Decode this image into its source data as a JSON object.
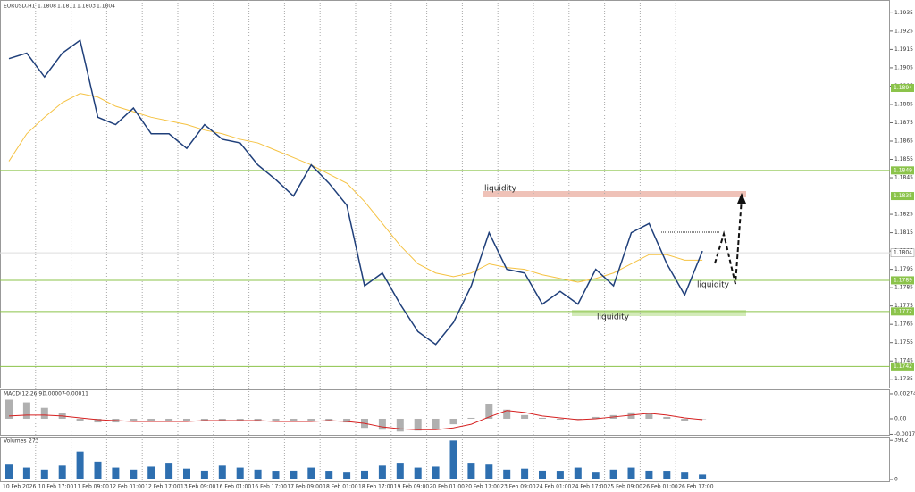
{
  "chart_data": [
    {
      "type": "line",
      "title": "EURUSD,H1",
      "ohlc": [
        1.1808,
        1.1811,
        1.1803,
        1.1804
      ],
      "categories": [
        "10 Feb 2026",
        null,
        "10 Feb 17:00",
        null,
        "11 Feb 09:00",
        null,
        "12 Feb 01:00",
        null,
        "12 Feb 17:00",
        null,
        "13 Feb 09:00",
        null,
        "16 Feb 01:00",
        null,
        "16 Feb 17:00",
        null,
        "17 Feb 09:00",
        null,
        "18 Feb 01:00",
        null,
        "18 Feb 17:00",
        null,
        "19 Feb 09:00",
        null,
        "20 Feb 01:00",
        null,
        "20 Feb 17:00",
        null,
        "23 Feb 09:00",
        null,
        "24 Feb 01:00",
        null,
        "24 Feb 17:00",
        null,
        "25 Feb 09:00",
        null,
        "26 Feb 01:00",
        null,
        "26 Feb 17:00",
        null
      ],
      "series": [
        {
          "color": "#1f3f7a",
          "values": [
            1.191,
            1.1913,
            1.19,
            1.1913,
            1.192,
            1.1878,
            1.1874,
            1.1883,
            1.1869,
            1.1869,
            1.1861,
            1.1874,
            1.1866,
            1.1864,
            1.1852,
            1.1844,
            1.1835,
            1.1852,
            1.1842,
            1.183,
            1.1786,
            1.1793,
            1.1776,
            1.1761,
            1.1754,
            1.1766,
            1.1786,
            1.1815,
            1.1795,
            1.1793,
            1.1776,
            1.1783,
            1.1776,
            1.1795,
            1.1786,
            1.1815,
            1.182,
            1.1798,
            1.1781,
            1.1805
          ]
        },
        {
          "color": "#f5c242",
          "values": [
            1.1854,
            1.1869,
            1.1878,
            1.1886,
            1.1891,
            1.1889,
            1.1884,
            1.1881,
            1.1878,
            1.1876,
            1.1874,
            1.1871,
            1.1869,
            1.1866,
            1.1864,
            1.186,
            1.1856,
            1.1852,
            1.1847,
            1.1842,
            1.1832,
            1.182,
            1.1808,
            1.1798,
            1.1793,
            1.1791,
            1.1793,
            1.1798,
            1.1796,
            1.1795,
            1.1792,
            1.179,
            1.1788,
            1.179,
            1.1793,
            1.1798,
            1.1803,
            1.1803,
            1.18,
            1.18
          ]
        }
      ],
      "ylim": [
        1.173,
        1.1942
      ],
      "yticks": [
        1.1735,
        1.1745,
        1.1755,
        1.1765,
        1.1775,
        1.1785,
        1.1795,
        1.1805,
        1.1815,
        1.1825,
        1.1835,
        1.1845,
        1.1855,
        1.1865,
        1.1875,
        1.1885,
        1.1895,
        1.1905,
        1.1915,
        1.1925,
        1.1935
      ],
      "levels": [
        1.1894,
        1.1849,
        1.1835,
        1.1789,
        1.1772,
        1.1742
      ],
      "level_color": "#8bc34a",
      "last_price": 1.1804,
      "annotations": [
        "liquidity",
        "liquidity",
        "liquidity"
      ]
    },
    {
      "type": "bar",
      "title": "MACD(12,26,9)",
      "readout": [
        7e-05,
        -0.00011
      ],
      "series": [
        {
          "type": "bar",
          "color": "#b0b0b0",
          "values": [
            0.0021,
            0.0018,
            0.0012,
            0.0006,
            -0.0002,
            -0.0004,
            -0.0004,
            -0.0003,
            -0.0003,
            -0.0003,
            -0.0002,
            -0.0002,
            -0.0002,
            -0.0002,
            -0.0003,
            -0.0003,
            -0.0003,
            -0.0002,
            -0.0002,
            -0.0004,
            -0.001,
            -0.0012,
            -0.0014,
            -0.0013,
            -0.0011,
            -0.0006,
            0.0001,
            0.0016,
            0.001,
            0.0004,
            0.0001,
            -0.0001,
            -0.0001,
            0.0002,
            0.0004,
            0.0007,
            0.0006,
            0.0002,
            -0.0002,
            0.0
          ]
        },
        {
          "type": "line",
          "color": "#d62020",
          "values": [
            0.0003,
            0.0004,
            0.0004,
            0.0003,
            0.0001,
            -0.0001,
            -0.0002,
            -0.0003,
            -0.0003,
            -0.0003,
            -0.0003,
            -0.0002,
            -0.0002,
            -0.0002,
            -0.0002,
            -0.0003,
            -0.0003,
            -0.0003,
            -0.0002,
            -0.0003,
            -0.0005,
            -0.0009,
            -0.0011,
            -0.0012,
            -0.0012,
            -0.001,
            -0.0006,
            0.0002,
            0.0009,
            0.0007,
            0.0003,
            0.0001,
            -0.0001,
            0.0,
            0.0002,
            0.0004,
            0.0006,
            0.0004,
            0.0001,
            -0.0001
          ]
        }
      ],
      "ylim": [
        -0.00186,
        0.00303
      ],
      "yticks": [
        0.00274,
        {
          "value": 0,
          "label": "0.00"
        },
        -0.00171
      ]
    },
    {
      "type": "bar",
      "title": "Volumes",
      "readout": [
        273
      ],
      "color": "#2e6fb0",
      "values": [
        1500,
        1200,
        1000,
        1400,
        2800,
        1800,
        1200,
        1000,
        1300,
        1600,
        1100,
        900,
        1400,
        1200,
        1000,
        800,
        900,
        1200,
        800,
        700,
        900,
        1400,
        1600,
        1200,
        1300,
        3900,
        1600,
        1500,
        1000,
        1100,
        900,
        800,
        1200,
        700,
        1000,
        1200,
        900,
        800,
        700,
        500
      ],
      "ylim": [
        0,
        4200
      ],
      "yticks": [
        3912,
        0
      ]
    }
  ]
}
